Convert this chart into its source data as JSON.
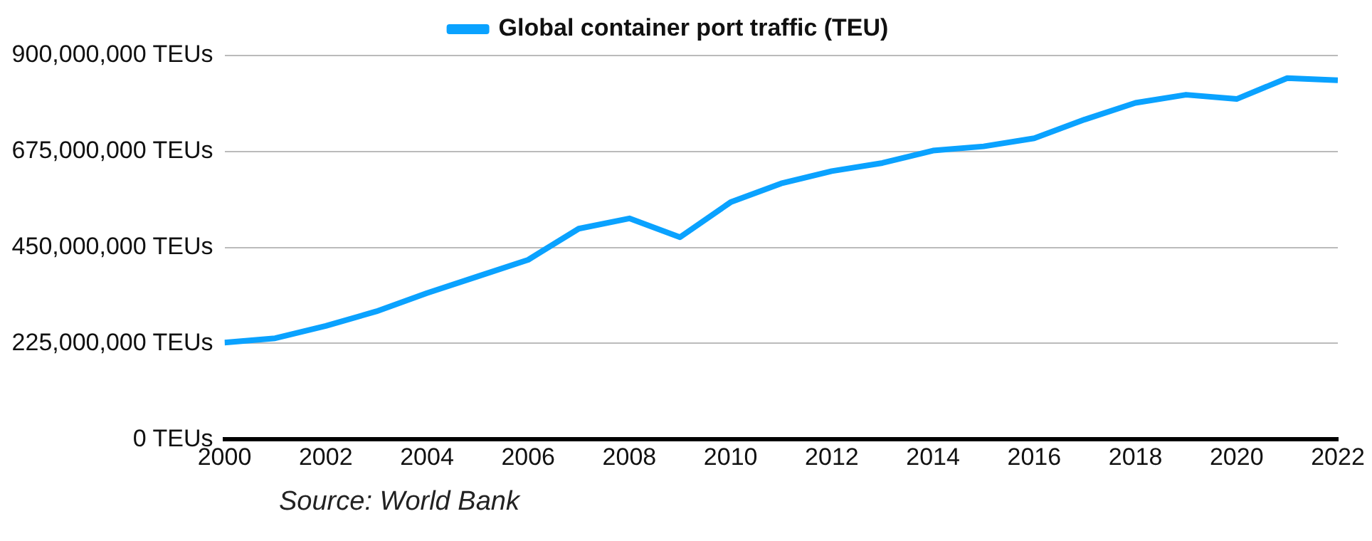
{
  "chart_data": {
    "type": "line",
    "x": [
      2000,
      2001,
      2002,
      2003,
      2004,
      2005,
      2006,
      2007,
      2008,
      2009,
      2010,
      2011,
      2012,
      2013,
      2014,
      2015,
      2016,
      2017,
      2018,
      2019,
      2020,
      2021,
      2022
    ],
    "series": [
      {
        "name": "Global container port traffic (TEU)",
        "color": "#0aa2ff",
        "values": [
          227000000,
          237000000,
          266000000,
          300000000,
          343000000,
          382000000,
          421000000,
          494000000,
          518000000,
          474000000,
          556000000,
          600000000,
          629000000,
          648000000,
          677000000,
          687000000,
          706000000,
          750000000,
          789000000,
          808000000,
          798000000,
          847000000,
          842000000
        ]
      }
    ],
    "xlim": [
      2000,
      2022
    ],
    "xticks": [
      2000,
      2002,
      2004,
      2006,
      2008,
      2010,
      2012,
      2014,
      2016,
      2018,
      2020,
      2022
    ],
    "ylim": [
      0,
      900000000
    ],
    "yticks": [
      {
        "value": 0,
        "label": "0 TEUs"
      },
      {
        "value": 225000000,
        "label": "225,000,000 TEUs"
      },
      {
        "value": 450000000,
        "label": "450,000,000 TEUs"
      },
      {
        "value": 675000000,
        "label": "675,000,000 TEUs"
      },
      {
        "value": 900000000,
        "label": "900,000,000 TEUs"
      }
    ],
    "grid": "y",
    "legend": "top",
    "marker": "none",
    "line_style": "solid",
    "annotations": [
      "Source: World Bank"
    ]
  }
}
